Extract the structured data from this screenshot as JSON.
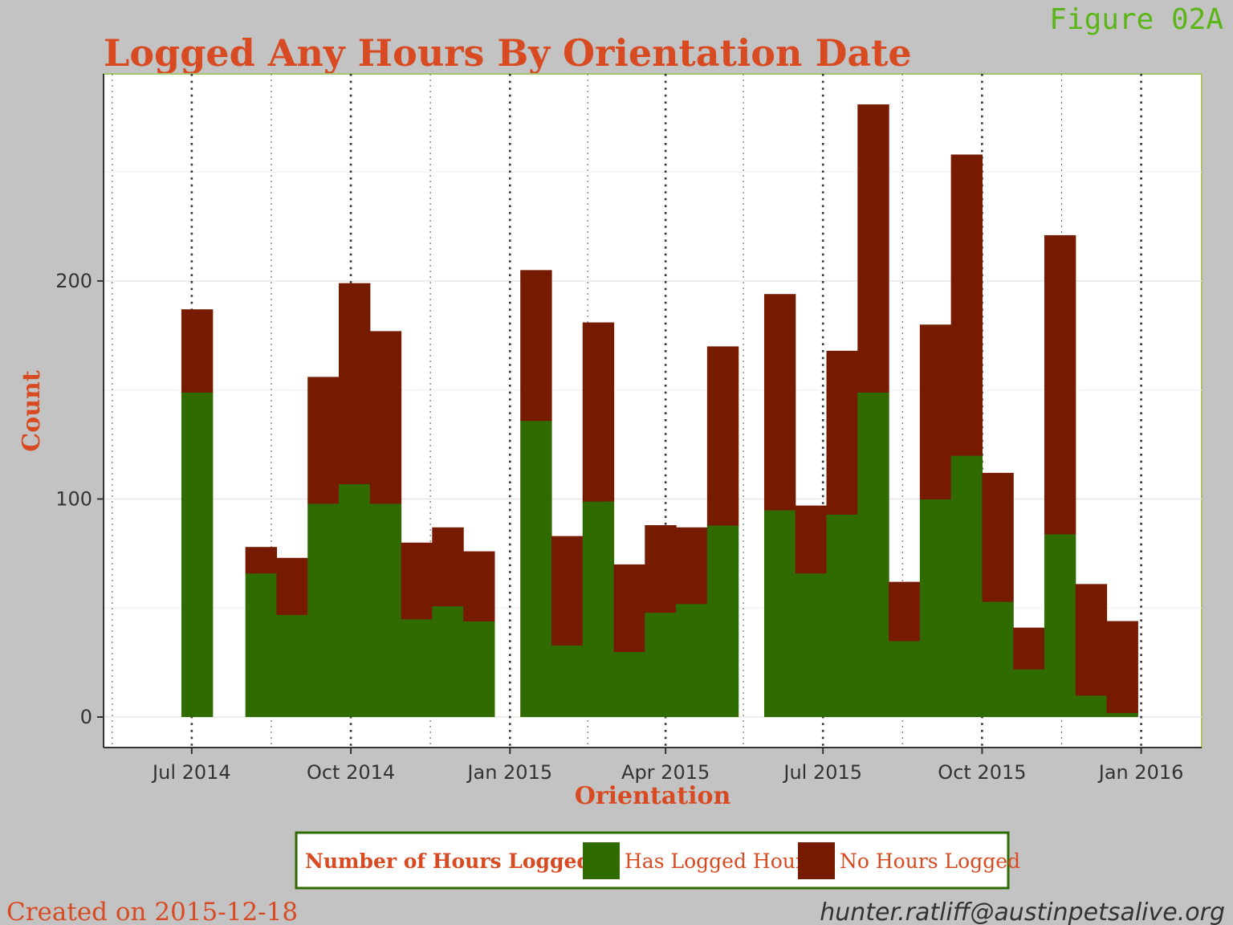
{
  "figure_label": "Figure 02A",
  "footer": {
    "created": "Created on 2015-12-18",
    "email": "hunter.ratliff@austinpetsalive.org"
  },
  "colors": {
    "background": "#c3c3c3",
    "panel": "#ffffff",
    "panel_border": "#a6c56a",
    "has_logged": "#2f6b00",
    "no_hours": "#761a00",
    "title": "#d84a22",
    "figure_label": "#5ab516",
    "axis_text": "#333333"
  },
  "chart_data": {
    "type": "bar",
    "stacked": true,
    "title": "Logged Any Hours By Orientation Date",
    "xlabel": "Orientation",
    "ylabel": "Count",
    "x_range": [
      "2014-05-11",
      "2016-02-05"
    ],
    "ylim": [
      -14,
      295
    ],
    "y_ticks": [
      0,
      100,
      200
    ],
    "x_ticks": [
      {
        "date": "2014-07-01",
        "label": "Jul 2014"
      },
      {
        "date": "2014-10-01",
        "label": "Oct 2014"
      },
      {
        "date": "2015-01-01",
        "label": "Jan 2015"
      },
      {
        "date": "2015-04-01",
        "label": "Apr 2015"
      },
      {
        "date": "2015-07-01",
        "label": "Jul 2015"
      },
      {
        "date": "2015-10-01",
        "label": "Oct 2015"
      },
      {
        "date": "2016-01-01",
        "label": "Jan 2016"
      }
    ],
    "minor_x_ticks": [
      "2014-05-16",
      "2014-08-16",
      "2014-11-16",
      "2015-02-15",
      "2015-05-16",
      "2015-08-16",
      "2015-11-16"
    ],
    "bins": [
      {
        "start": "2014-06-25",
        "end": "2014-07-13",
        "has": 149,
        "no": 38
      },
      {
        "start": "2014-08-01",
        "end": "2014-08-19",
        "has": 66,
        "no": 12
      },
      {
        "start": "2014-08-19",
        "end": "2014-09-06",
        "has": 47,
        "no": 26
      },
      {
        "start": "2014-09-06",
        "end": "2014-09-24",
        "has": 98,
        "no": 58
      },
      {
        "start": "2014-09-24",
        "end": "2014-10-12",
        "has": 107,
        "no": 92
      },
      {
        "start": "2014-10-12",
        "end": "2014-10-30",
        "has": 98,
        "no": 79
      },
      {
        "start": "2014-10-30",
        "end": "2014-11-17",
        "has": 45,
        "no": 35
      },
      {
        "start": "2014-11-17",
        "end": "2014-12-05",
        "has": 51,
        "no": 36
      },
      {
        "start": "2014-12-05",
        "end": "2014-12-23",
        "has": 44,
        "no": 32
      },
      {
        "start": "2015-01-07",
        "end": "2015-01-25",
        "has": 136,
        "no": 69
      },
      {
        "start": "2015-01-25",
        "end": "2015-02-12",
        "has": 33,
        "no": 50
      },
      {
        "start": "2015-02-12",
        "end": "2015-03-02",
        "has": 99,
        "no": 82
      },
      {
        "start": "2015-03-02",
        "end": "2015-03-20",
        "has": 30,
        "no": 40
      },
      {
        "start": "2015-03-20",
        "end": "2015-04-07",
        "has": 48,
        "no": 40
      },
      {
        "start": "2015-04-07",
        "end": "2015-04-25",
        "has": 52,
        "no": 35
      },
      {
        "start": "2015-04-25",
        "end": "2015-05-13",
        "has": 88,
        "no": 82
      },
      {
        "start": "2015-05-28",
        "end": "2015-06-15",
        "has": 95,
        "no": 99
      },
      {
        "start": "2015-06-15",
        "end": "2015-07-03",
        "has": 66,
        "no": 31
      },
      {
        "start": "2015-07-03",
        "end": "2015-07-21",
        "has": 93,
        "no": 75
      },
      {
        "start": "2015-07-21",
        "end": "2015-08-08",
        "has": 149,
        "no": 132
      },
      {
        "start": "2015-08-08",
        "end": "2015-08-26",
        "has": 35,
        "no": 27
      },
      {
        "start": "2015-08-26",
        "end": "2015-09-13",
        "has": 100,
        "no": 80
      },
      {
        "start": "2015-09-13",
        "end": "2015-10-01",
        "has": 120,
        "no": 138
      },
      {
        "start": "2015-10-01",
        "end": "2015-10-19",
        "has": 53,
        "no": 59
      },
      {
        "start": "2015-10-19",
        "end": "2015-11-06",
        "has": 22,
        "no": 19
      },
      {
        "start": "2015-11-06",
        "end": "2015-11-24",
        "has": 84,
        "no": 137
      },
      {
        "start": "2015-11-24",
        "end": "2015-12-12",
        "has": 10,
        "no": 51
      },
      {
        "start": "2015-12-12",
        "end": "2015-12-30",
        "has": 2,
        "no": 42
      }
    ],
    "legend": {
      "title": "Number of Hours Logged",
      "position": "bottom",
      "entries": [
        {
          "label": "Has Logged Hours",
          "series": "has"
        },
        {
          "label": "No Hours Logged",
          "series": "no"
        }
      ]
    },
    "grid": true
  }
}
